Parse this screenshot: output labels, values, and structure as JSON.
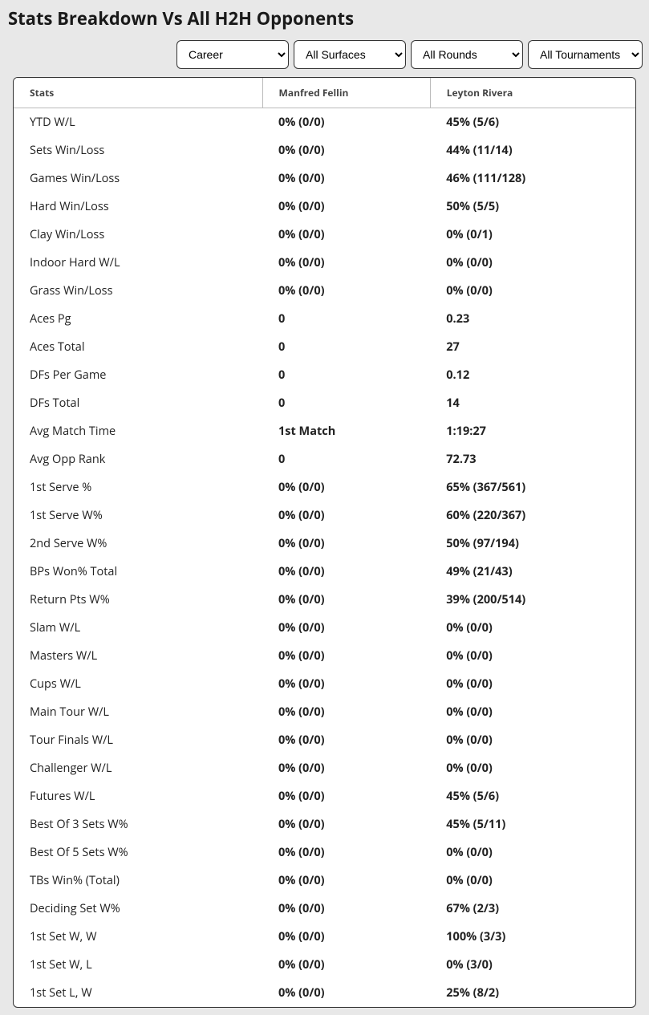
{
  "title": "Stats Breakdown Vs All H2H Opponents",
  "filters": {
    "period": "Career",
    "surface": "All Surfaces",
    "rounds": "All Rounds",
    "tournaments": "All Tournaments"
  },
  "table": {
    "headers": {
      "stats": "Stats",
      "player1": "Manfred Fellin",
      "player2": "Leyton Rivera"
    },
    "rows": [
      {
        "stat": "YTD W/L",
        "p1": "0% (0/0)",
        "p2": "45% (5/6)"
      },
      {
        "stat": "Sets Win/Loss",
        "p1": "0% (0/0)",
        "p2": "44% (11/14)"
      },
      {
        "stat": "Games Win/Loss",
        "p1": "0% (0/0)",
        "p2": "46% (111/128)"
      },
      {
        "stat": "Hard Win/Loss",
        "p1": "0% (0/0)",
        "p2": "50% (5/5)"
      },
      {
        "stat": "Clay Win/Loss",
        "p1": "0% (0/0)",
        "p2": "0% (0/1)"
      },
      {
        "stat": "Indoor Hard W/L",
        "p1": "0% (0/0)",
        "p2": "0% (0/0)"
      },
      {
        "stat": "Grass Win/Loss",
        "p1": "0% (0/0)",
        "p2": "0% (0/0)"
      },
      {
        "stat": "Aces Pg",
        "p1": "0",
        "p2": "0.23"
      },
      {
        "stat": "Aces Total",
        "p1": "0",
        "p2": "27"
      },
      {
        "stat": "DFs Per Game",
        "p1": "0",
        "p2": "0.12"
      },
      {
        "stat": "DFs Total",
        "p1": "0",
        "p2": "14"
      },
      {
        "stat": "Avg Match Time",
        "p1": "1st Match",
        "p2": "1:19:27"
      },
      {
        "stat": "Avg Opp Rank",
        "p1": "0",
        "p2": "72.73"
      },
      {
        "stat": "1st Serve %",
        "p1": "0% (0/0)",
        "p2": "65% (367/561)"
      },
      {
        "stat": "1st Serve W%",
        "p1": "0% (0/0)",
        "p2": "60% (220/367)"
      },
      {
        "stat": "2nd Serve W%",
        "p1": "0% (0/0)",
        "p2": "50% (97/194)"
      },
      {
        "stat": "BPs Won% Total",
        "p1": "0% (0/0)",
        "p2": "49% (21/43)"
      },
      {
        "stat": "Return Pts W%",
        "p1": "0% (0/0)",
        "p2": "39% (200/514)"
      },
      {
        "stat": "Slam W/L",
        "p1": "0% (0/0)",
        "p2": "0% (0/0)"
      },
      {
        "stat": "Masters W/L",
        "p1": "0% (0/0)",
        "p2": "0% (0/0)"
      },
      {
        "stat": "Cups W/L",
        "p1": "0% (0/0)",
        "p2": "0% (0/0)"
      },
      {
        "stat": "Main Tour W/L",
        "p1": "0% (0/0)",
        "p2": "0% (0/0)"
      },
      {
        "stat": "Tour Finals W/L",
        "p1": "0% (0/0)",
        "p2": "0% (0/0)"
      },
      {
        "stat": "Challenger W/L",
        "p1": "0% (0/0)",
        "p2": "0% (0/0)"
      },
      {
        "stat": "Futures W/L",
        "p1": "0% (0/0)",
        "p2": "45% (5/6)"
      },
      {
        "stat": "Best Of 3 Sets W%",
        "p1": "0% (0/0)",
        "p2": "45% (5/11)"
      },
      {
        "stat": "Best Of 5 Sets W%",
        "p1": "0% (0/0)",
        "p2": "0% (0/0)"
      },
      {
        "stat": "TBs Win% (Total)",
        "p1": "0% (0/0)",
        "p2": "0% (0/0)"
      },
      {
        "stat": "Deciding Set W%",
        "p1": "0% (0/0)",
        "p2": "67% (2/3)"
      },
      {
        "stat": "1st Set W, W",
        "p1": "0% (0/0)",
        "p2": "100% (3/3)"
      },
      {
        "stat": "1st Set W, L",
        "p1": "0% (0/0)",
        "p2": "0% (3/0)"
      },
      {
        "stat": "1st Set L, W",
        "p1": "0% (0/0)",
        "p2": "25% (8/2)"
      }
    ]
  }
}
